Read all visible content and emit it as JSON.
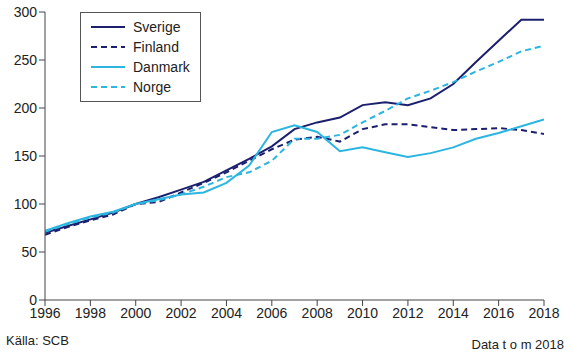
{
  "chart_data": {
    "type": "line",
    "x": [
      1996,
      1997,
      1998,
      1999,
      2000,
      2001,
      2002,
      2003,
      2004,
      2005,
      2006,
      2007,
      2008,
      2009,
      2010,
      2011,
      2012,
      2013,
      2014,
      2015,
      2016,
      2017,
      2018
    ],
    "series": [
      {
        "name": "Sverige",
        "color": "#1b1f6e",
        "line_style": "solid",
        "values": [
          70,
          77,
          84,
          91,
          100,
          107,
          115,
          123,
          135,
          147,
          160,
          178,
          185,
          190,
          203,
          206,
          203,
          210,
          225,
          248,
          270,
          292,
          292
        ]
      },
      {
        "name": "Finland",
        "color": "#1b1f6e",
        "line_style": "dashed",
        "values": [
          68,
          76,
          83,
          89,
          100,
          102,
          112,
          122,
          133,
          145,
          157,
          167,
          170,
          165,
          178,
          183,
          183,
          180,
          177,
          178,
          179,
          177,
          173
        ]
      },
      {
        "name": "Danmark",
        "color": "#2bb5e0",
        "line_style": "solid",
        "values": [
          72,
          80,
          87,
          92,
          100,
          105,
          110,
          112,
          122,
          140,
          175,
          182,
          175,
          155,
          159,
          154,
          149,
          153,
          159,
          168,
          174,
          181,
          188
        ]
      },
      {
        "name": "Norge",
        "color": "#2bb5e0",
        "line_style": "dashed",
        "values": [
          71,
          79,
          86,
          91,
          100,
          104,
          110,
          118,
          128,
          133,
          145,
          168,
          168,
          172,
          185,
          197,
          210,
          218,
          227,
          238,
          248,
          259,
          265
        ]
      }
    ],
    "xlim": [
      1996,
      2018
    ],
    "xticks": [
      1996,
      1998,
      2000,
      2002,
      2004,
      2006,
      2008,
      2010,
      2012,
      2014,
      2016,
      2018
    ],
    "ylim": [
      0,
      300
    ],
    "yticks": [
      0,
      50,
      100,
      150,
      200,
      250,
      300
    ],
    "grid": false,
    "legend": "top-left",
    "source": "Källa: SCB",
    "note": "Data t o m 2018"
  }
}
